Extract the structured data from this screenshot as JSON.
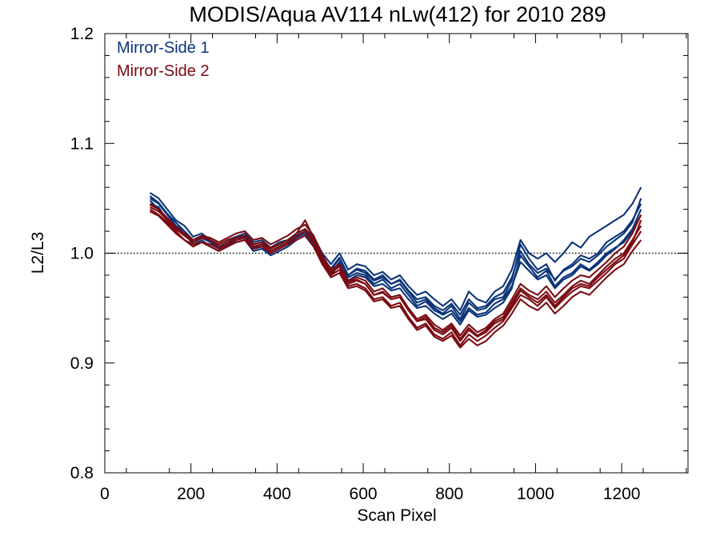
{
  "chart_data": {
    "type": "line",
    "title": "MODIS/Aqua AV114 nLw(412) for 2010 289",
    "xlabel": "Scan Pixel",
    "ylabel": "L2/L3",
    "xlim": [
      0,
      1354
    ],
    "ylim": [
      0.8,
      1.2
    ],
    "xticks": [
      "0",
      "200",
      "400",
      "600",
      "800",
      "1000",
      "1200"
    ],
    "yticks": [
      "0.8",
      "0.9",
      "1.0",
      "1.1",
      "1.2"
    ],
    "reference_line": 1.0,
    "legend": {
      "position": "top-left",
      "entries": [
        {
          "label": "Mirror-Side 1",
          "color": "#0b3478"
        },
        {
          "label": "Mirror-Side 2",
          "color": "#7a0b12"
        }
      ]
    },
    "x": [
      105,
      125,
      145,
      165,
      185,
      205,
      225,
      245,
      265,
      285,
      305,
      325,
      345,
      365,
      385,
      405,
      425,
      445,
      465,
      485,
      505,
      525,
      545,
      565,
      585,
      605,
      625,
      645,
      665,
      685,
      705,
      725,
      745,
      765,
      785,
      805,
      825,
      845,
      865,
      885,
      905,
      925,
      945,
      965,
      985,
      1005,
      1025,
      1045,
      1065,
      1085,
      1105,
      1125,
      1145,
      1165,
      1185,
      1205,
      1225,
      1245
    ],
    "series": [
      {
        "group": "Mirror-Side 1",
        "values": [
          1.05,
          1.045,
          1.035,
          1.025,
          1.02,
          1.01,
          1.015,
          1.01,
          1.005,
          1.01,
          1.012,
          1.015,
          1.005,
          1.008,
          1.002,
          1.006,
          1.01,
          1.015,
          1.02,
          1.01,
          0.995,
          0.985,
          0.995,
          0.98,
          0.985,
          0.982,
          0.975,
          0.978,
          0.972,
          0.975,
          0.965,
          0.955,
          0.958,
          0.95,
          0.945,
          0.952,
          0.94,
          0.955,
          0.948,
          0.95,
          0.958,
          0.96,
          0.975,
          1.008,
          0.995,
          0.985,
          0.99,
          0.975,
          0.985,
          0.99,
          0.998,
          0.995,
          1.0,
          1.01,
          1.015,
          1.02,
          1.03,
          1.045
        ]
      },
      {
        "group": "Mirror-Side 1",
        "values": [
          1.055,
          1.05,
          1.04,
          1.03,
          1.025,
          1.015,
          1.018,
          1.012,
          1.008,
          1.012,
          1.015,
          1.018,
          1.01,
          1.012,
          1.005,
          1.01,
          1.012,
          1.018,
          1.022,
          1.015,
          1.0,
          0.99,
          1.0,
          0.985,
          0.99,
          0.988,
          0.98,
          0.983,
          0.976,
          0.98,
          0.97,
          0.962,
          0.965,
          0.958,
          0.952,
          0.958,
          0.948,
          0.965,
          0.958,
          0.955,
          0.965,
          0.97,
          0.985,
          1.012,
          1.0,
          0.995,
          1.0,
          0.992,
          1.0,
          1.01,
          1.005,
          1.015,
          1.02,
          1.025,
          1.03,
          1.035,
          1.045,
          1.06
        ]
      },
      {
        "group": "Mirror-Side 1",
        "values": [
          1.048,
          1.04,
          1.032,
          1.022,
          1.018,
          1.008,
          1.012,
          1.006,
          1.002,
          1.008,
          1.01,
          1.012,
          1.002,
          1.004,
          0.998,
          1.002,
          1.006,
          1.012,
          1.016,
          1.006,
          0.99,
          0.98,
          0.99,
          0.975,
          0.98,
          0.978,
          0.97,
          0.972,
          0.966,
          0.968,
          0.958,
          0.95,
          0.952,
          0.945,
          0.94,
          0.945,
          0.935,
          0.948,
          0.942,
          0.944,
          0.95,
          0.955,
          0.968,
          0.998,
          0.988,
          0.978,
          0.984,
          0.97,
          0.978,
          0.982,
          0.99,
          0.985,
          0.992,
          1.0,
          1.005,
          1.01,
          1.02,
          1.035
        ]
      },
      {
        "group": "Mirror-Side 1",
        "values": [
          1.045,
          1.042,
          1.03,
          1.024,
          1.016,
          1.01,
          1.014,
          1.01,
          1.004,
          1.006,
          1.012,
          1.014,
          1.004,
          1.006,
          1.0,
          1.004,
          1.008,
          1.014,
          1.018,
          1.008,
          0.992,
          0.982,
          0.992,
          0.978,
          0.982,
          0.98,
          0.972,
          0.976,
          0.968,
          0.972,
          0.962,
          0.952,
          0.956,
          0.948,
          0.944,
          0.948,
          0.938,
          0.95,
          0.944,
          0.946,
          0.954,
          0.958,
          0.97,
          0.992,
          0.984,
          0.976,
          0.98,
          0.968,
          0.976,
          0.98,
          0.988,
          0.984,
          0.99,
          0.998,
          1.004,
          1.012,
          1.022,
          1.04
        ]
      },
      {
        "group": "Mirror-Side 1",
        "values": [
          1.052,
          1.046,
          1.036,
          1.028,
          1.02,
          1.012,
          1.016,
          1.012,
          1.006,
          1.01,
          1.014,
          1.016,
          1.006,
          1.008,
          1.002,
          1.006,
          1.01,
          1.016,
          1.02,
          1.01,
          0.996,
          0.986,
          0.996,
          0.98,
          0.986,
          0.984,
          0.976,
          0.98,
          0.972,
          0.976,
          0.966,
          0.958,
          0.96,
          0.952,
          0.948,
          0.954,
          0.944,
          0.958,
          0.95,
          0.952,
          0.96,
          0.964,
          0.978,
          1.002,
          0.99,
          0.982,
          0.986,
          0.976,
          0.984,
          0.988,
          0.995,
          0.992,
          0.998,
          1.006,
          1.012,
          1.018,
          1.028,
          1.05
        ]
      },
      {
        "group": "Mirror-Side 2",
        "values": [
          1.042,
          1.038,
          1.03,
          1.022,
          1.016,
          1.01,
          1.014,
          1.012,
          1.008,
          1.012,
          1.014,
          1.016,
          1.008,
          1.01,
          1.005,
          1.008,
          1.012,
          1.018,
          1.022,
          1.012,
          0.995,
          0.982,
          0.988,
          0.972,
          0.975,
          0.972,
          0.962,
          0.964,
          0.958,
          0.96,
          0.948,
          0.938,
          0.942,
          0.932,
          0.928,
          0.934,
          0.922,
          0.932,
          0.925,
          0.93,
          0.938,
          0.942,
          0.955,
          0.968,
          0.962,
          0.958,
          0.965,
          0.955,
          0.962,
          0.97,
          0.975,
          0.972,
          0.98,
          0.988,
          0.995,
          1.0,
          1.012,
          1.025
        ]
      },
      {
        "group": "Mirror-Side 2",
        "values": [
          1.04,
          1.035,
          1.028,
          1.02,
          1.012,
          1.008,
          1.01,
          1.008,
          1.004,
          1.008,
          1.012,
          1.014,
          1.006,
          1.008,
          1.002,
          1.006,
          1.01,
          1.015,
          1.02,
          1.01,
          0.992,
          0.98,
          0.985,
          0.97,
          0.972,
          0.968,
          0.958,
          0.96,
          0.952,
          0.955,
          0.942,
          0.932,
          0.936,
          0.926,
          0.922,
          0.928,
          0.916,
          0.926,
          0.92,
          0.925,
          0.932,
          0.938,
          0.95,
          0.962,
          0.958,
          0.952,
          0.96,
          0.95,
          0.958,
          0.965,
          0.97,
          0.968,
          0.975,
          0.982,
          0.99,
          0.995,
          1.008,
          1.02
        ]
      },
      {
        "group": "Mirror-Side 2",
        "values": [
          1.045,
          1.04,
          1.032,
          1.024,
          1.018,
          1.012,
          1.016,
          1.014,
          1.01,
          1.014,
          1.018,
          1.02,
          1.012,
          1.014,
          1.008,
          1.012,
          1.016,
          1.022,
          1.026,
          1.016,
          0.998,
          0.985,
          0.99,
          0.975,
          0.978,
          0.975,
          0.965,
          0.968,
          0.96,
          0.962,
          0.95,
          0.94,
          0.944,
          0.935,
          0.93,
          0.936,
          0.925,
          0.935,
          0.928,
          0.932,
          0.94,
          0.945,
          0.958,
          0.972,
          0.966,
          0.962,
          0.97,
          0.96,
          0.968,
          0.975,
          0.98,
          0.978,
          0.985,
          0.992,
          1.0,
          1.006,
          1.018,
          1.035
        ]
      },
      {
        "group": "Mirror-Side 2",
        "values": [
          1.038,
          1.034,
          1.026,
          1.018,
          1.012,
          1.006,
          1.01,
          1.006,
          1.002,
          1.006,
          1.01,
          1.012,
          1.004,
          1.006,
          1.0,
          1.004,
          1.008,
          1.012,
          1.016,
          1.006,
          0.99,
          0.978,
          0.982,
          0.968,
          0.97,
          0.966,
          0.956,
          0.958,
          0.95,
          0.952,
          0.94,
          0.93,
          0.934,
          0.924,
          0.92,
          0.925,
          0.914,
          0.922,
          0.916,
          0.92,
          0.928,
          0.934,
          0.945,
          0.958,
          0.952,
          0.948,
          0.955,
          0.945,
          0.952,
          0.96,
          0.965,
          0.962,
          0.97,
          0.978,
          0.985,
          0.99,
          1.002,
          1.012
        ]
      },
      {
        "group": "Mirror-Side 2",
        "values": [
          1.044,
          1.04,
          1.03,
          1.022,
          1.016,
          1.01,
          1.014,
          1.012,
          1.006,
          1.01,
          1.014,
          1.016,
          1.008,
          1.01,
          1.004,
          1.008,
          1.012,
          1.018,
          1.03,
          1.014,
          0.996,
          0.984,
          0.988,
          0.974,
          0.976,
          0.972,
          0.962,
          0.965,
          0.958,
          0.96,
          0.948,
          0.938,
          0.94,
          0.93,
          0.926,
          0.932,
          0.92,
          0.93,
          0.924,
          0.928,
          0.936,
          0.94,
          0.952,
          0.966,
          0.96,
          0.955,
          0.962,
          0.952,
          0.96,
          0.968,
          0.972,
          0.97,
          0.978,
          0.985,
          0.992,
          0.998,
          1.01,
          1.03
        ]
      }
    ]
  }
}
